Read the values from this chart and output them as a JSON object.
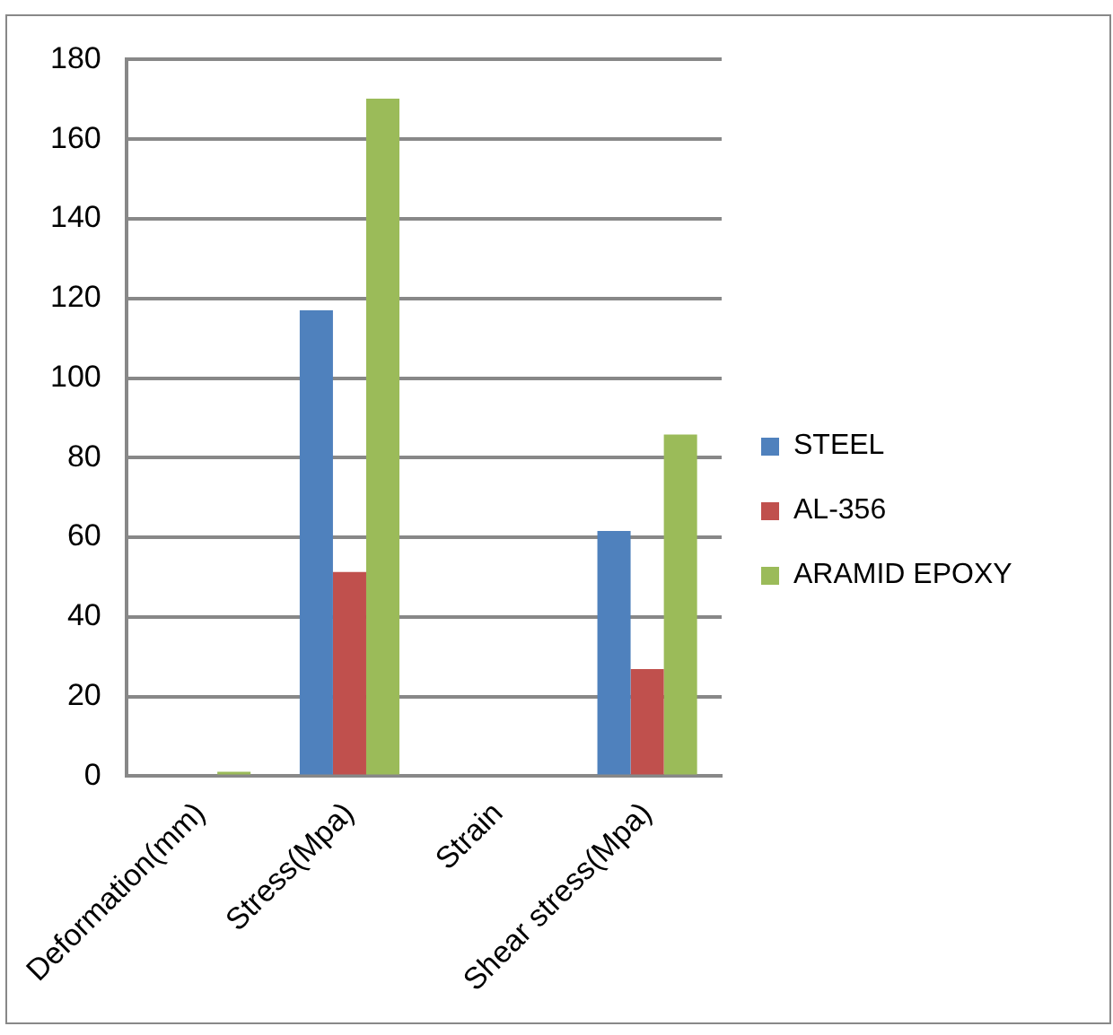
{
  "chart_data": {
    "type": "bar",
    "categories": [
      "Deformation(mm)",
      "Stress(Mpa)",
      "Strain",
      "Shear stress(Mpa)"
    ],
    "series": [
      {
        "name": "STEEL",
        "color": "#4f81bd",
        "values": [
          0,
          117,
          0,
          61.6
        ]
      },
      {
        "name": "AL-356",
        "color": "#c0504d",
        "values": [
          0,
          51.3,
          0,
          26.9
        ]
      },
      {
        "name": "ARAMID EPOXY",
        "color": "#9bbb59",
        "values": [
          1.1,
          170.2,
          0,
          85.8
        ]
      }
    ],
    "ylim": [
      0,
      180
    ],
    "yticks": [
      0,
      20,
      40,
      60,
      80,
      100,
      120,
      140,
      160,
      180
    ],
    "grid": "y",
    "legend": "right"
  }
}
